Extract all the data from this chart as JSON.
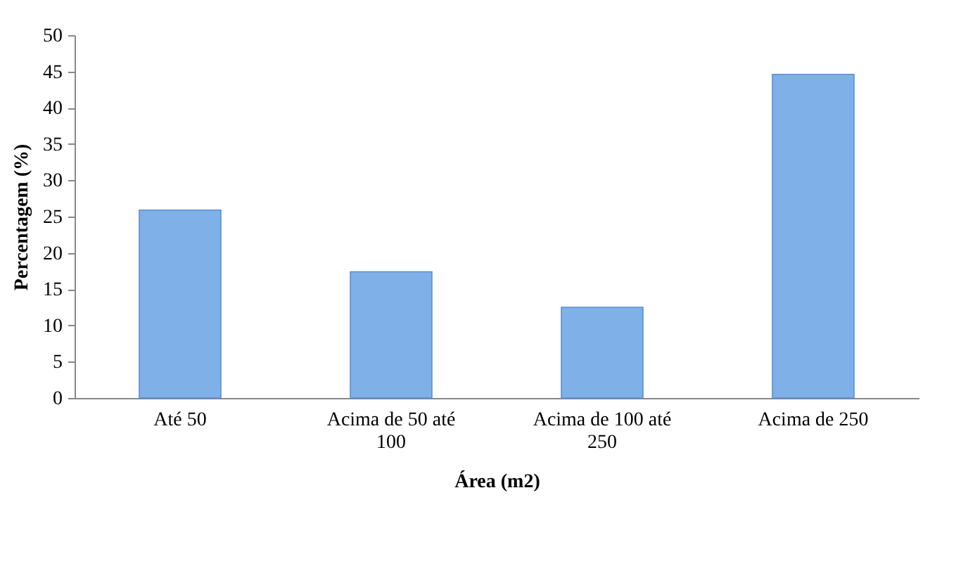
{
  "chart_data": {
    "type": "bar",
    "xlabel": "Área (m2)",
    "ylabel": "Percentagem (%)",
    "categories": [
      "Até 50",
      "Acima de 50 até 100",
      "Acima de 100 até 250",
      "Acima de 250"
    ],
    "values": [
      25.9,
      17.4,
      12.5,
      44.6
    ],
    "color": "#7fb0e8",
    "ylim": [
      0,
      50
    ],
    "yticks": [
      0,
      5,
      10,
      15,
      20,
      25,
      30,
      35,
      40,
      45,
      50
    ],
    "grid": false
  }
}
